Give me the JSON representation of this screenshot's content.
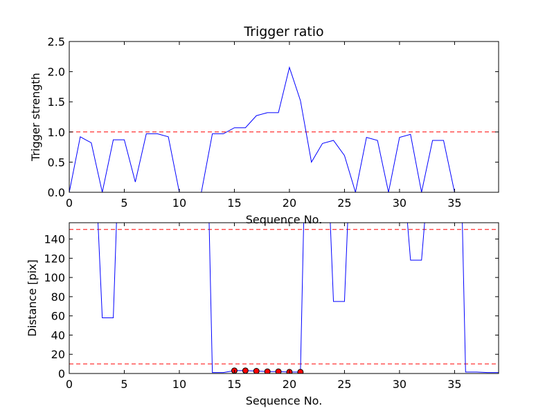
{
  "chart_data": [
    {
      "type": "line",
      "title": "Trigger ratio",
      "xlabel": "Sequence No.",
      "ylabel": "Trigger strength",
      "xlim": [
        0,
        39
      ],
      "ylim": [
        0,
        2.5
      ],
      "xticks": [
        0,
        5,
        10,
        15,
        20,
        25,
        30,
        35
      ],
      "yticks": [
        "0.0",
        "0.5",
        "1.0",
        "1.5",
        "2.0",
        "2.5"
      ],
      "line_color": "#0000ff",
      "threshold_color": "#ff0000",
      "thresholds": [
        1.0
      ],
      "series": [
        {
          "x": [
            0,
            1,
            2,
            3,
            4,
            5,
            6,
            7,
            8,
            9,
            10,
            11,
            12,
            13,
            14,
            15,
            16,
            17,
            18,
            19,
            20,
            21,
            22,
            23,
            24,
            25,
            26,
            27,
            28,
            29,
            30,
            31,
            32,
            33,
            34,
            35,
            36,
            37,
            38,
            39
          ],
          "values": [
            0.0,
            0.92,
            0.82,
            0.0,
            0.87,
            0.87,
            0.17,
            0.97,
            0.97,
            0.92,
            0.0,
            0.0,
            0.0,
            0.97,
            0.97,
            1.07,
            1.07,
            1.27,
            1.32,
            1.32,
            2.07,
            1.52,
            0.5,
            0.81,
            0.86,
            0.61,
            0.0,
            0.91,
            0.86,
            0.0,
            0.91,
            0.96,
            0.0,
            0.86,
            0.86,
            0.0,
            0.0,
            0.0,
            0.0,
            0.0
          ]
        }
      ]
    },
    {
      "type": "line",
      "title": "",
      "xlabel": "Sequence No.",
      "ylabel": "Distance [pix]",
      "xlim": [
        0,
        39
      ],
      "ylim": [
        0,
        157
      ],
      "xticks": [
        0,
        5,
        10,
        15,
        20,
        25,
        30,
        35
      ],
      "yticks": [
        0,
        20,
        40,
        60,
        80,
        100,
        120,
        140
      ],
      "line_color": "#0000ff",
      "threshold_color": "#ff0000",
      "marker_color": "#ff0000",
      "thresholds": [
        150,
        10
      ],
      "series": [
        {
          "x": [
            2.6,
            3,
            4,
            4.3,
            12.7,
            13,
            14,
            15,
            16,
            17,
            18,
            19,
            20,
            21,
            21.3,
            23.7,
            24,
            25,
            25.3,
            30.7,
            31,
            32,
            32.3,
            35.7,
            36,
            37,
            38,
            39
          ],
          "values": [
            160,
            58,
            58,
            160,
            160,
            1,
            1,
            3,
            3,
            2.5,
            2,
            2,
            1.5,
            1.5,
            160,
            160,
            75,
            75,
            160,
            160,
            118,
            118,
            160,
            160,
            1.5,
            1.5,
            1,
            1
          ]
        }
      ],
      "markers": {
        "x": [
          15,
          16,
          17,
          18,
          19,
          20,
          21
        ],
        "values": [
          3,
          3,
          2.5,
          2,
          2,
          1.5,
          1.5
        ]
      }
    }
  ]
}
